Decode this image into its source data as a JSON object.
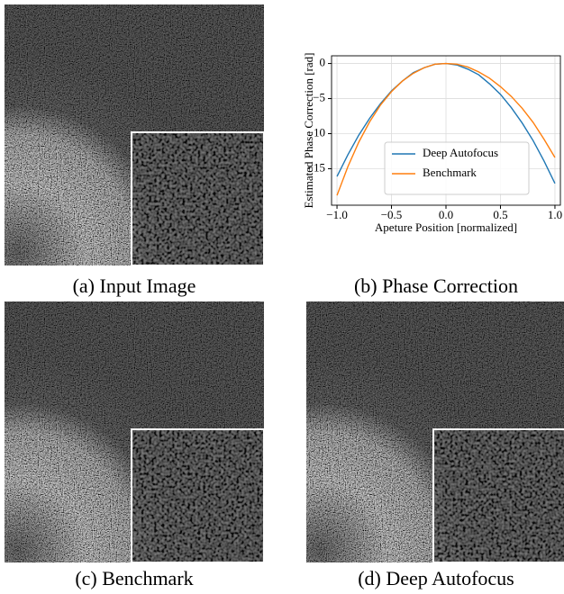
{
  "captions": [
    "(a) Input Image",
    "(b) Phase Correction",
    "(c) Benchmark",
    "(d) Deep Autofocus"
  ],
  "chart_data": {
    "type": "line",
    "xlabel": "Apeture Position [normalized]",
    "ylabel": "Estimated Phase Correction [rad]",
    "x": [
      -1.0,
      -0.9,
      -0.8,
      -0.7,
      -0.6,
      -0.5,
      -0.4,
      -0.3,
      -0.2,
      -0.1,
      0.0,
      0.1,
      0.2,
      0.3,
      0.4,
      0.5,
      0.6,
      0.7,
      0.8,
      0.9,
      1.0
    ],
    "series": [
      {
        "name": "Deep Autofocus",
        "color": "#1f77b4",
        "values": [
          -16.1,
          -13.0,
          -10.2,
          -7.8,
          -5.7,
          -3.9,
          -2.5,
          -1.3,
          -0.6,
          -0.1,
          0,
          -0.2,
          -0.8,
          -1.6,
          -2.9,
          -4.4,
          -6.3,
          -8.5,
          -11.0,
          -13.9,
          -17.1
        ]
      },
      {
        "name": "Benchmark",
        "color": "#ff7f0e",
        "values": [
          -18.8,
          -14.7,
          -11.2,
          -8.3,
          -5.9,
          -4.0,
          -2.5,
          -1.4,
          -0.6,
          -0.1,
          0,
          -0.1,
          -0.5,
          -1.2,
          -2.1,
          -3.3,
          -4.7,
          -6.4,
          -8.4,
          -10.8,
          -13.4
        ]
      }
    ],
    "xlim": [
      -1.05,
      1.05
    ],
    "ylim": [
      -20.2,
      1.1
    ],
    "xticks": [
      {
        "value": -1.0,
        "label": "−1.0"
      },
      {
        "value": -0.5,
        "label": "−0.5"
      },
      {
        "value": 0.0,
        "label": "0.0"
      },
      {
        "value": 0.5,
        "label": "0.5"
      },
      {
        "value": 1.0,
        "label": "1.0"
      }
    ],
    "yticks": [
      0,
      {
        "value": -5,
        "label": "−5"
      },
      {
        "value": -10,
        "label": "−10"
      },
      {
        "value": -15,
        "label": "−15"
      }
    ],
    "grid": true,
    "legend": "lower center"
  }
}
